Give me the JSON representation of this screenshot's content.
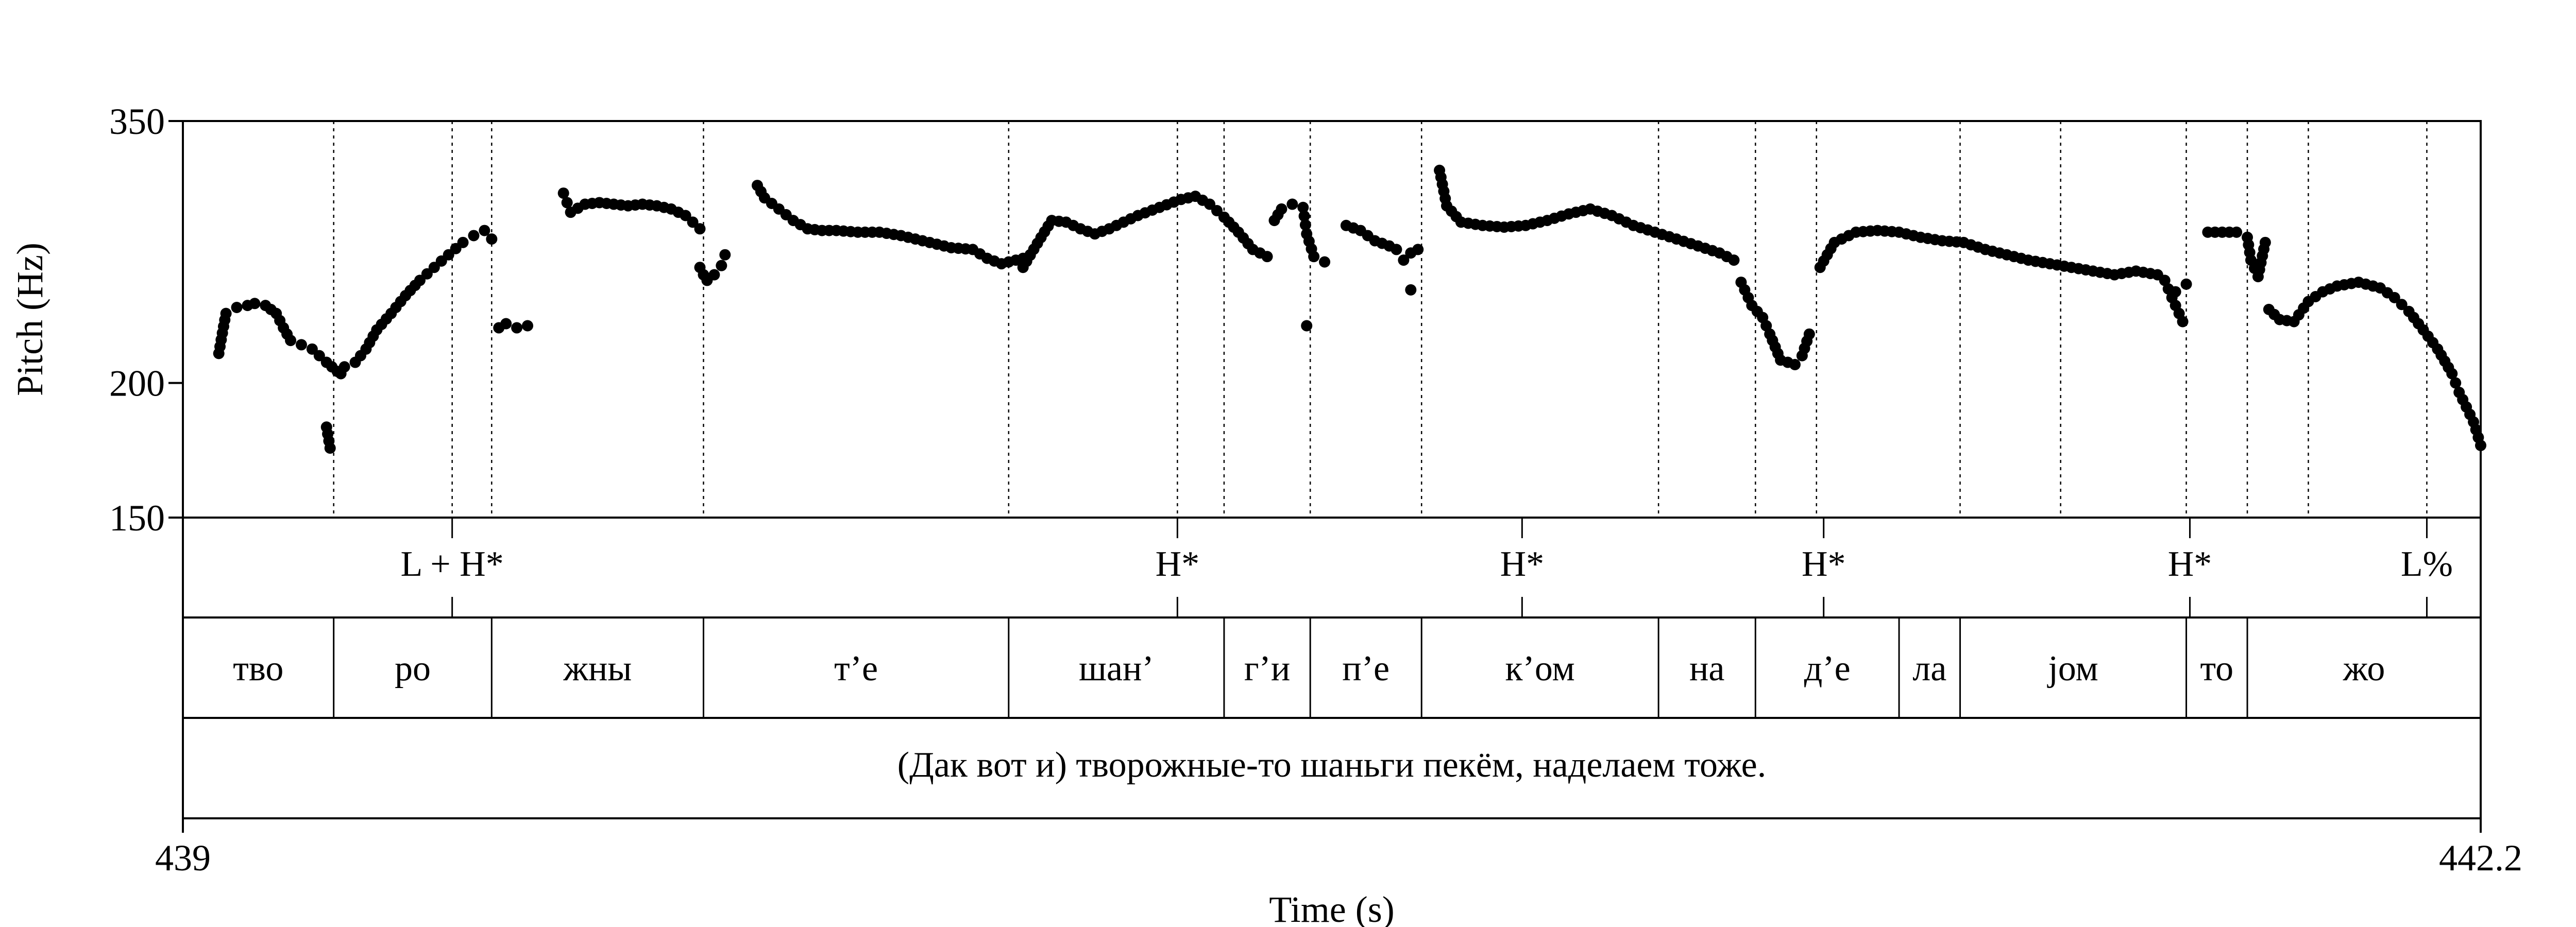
{
  "chart_data": {
    "type": "scatter",
    "title": "",
    "xlabel": "Time (s)",
    "ylabel": "Pitch (Hz)",
    "xlim": [
      439,
      442.2
    ],
    "ylim": [
      150,
      350
    ],
    "y_scale": "log",
    "x_ticks": [
      "439",
      "442.2"
    ],
    "y_ticks": [
      {
        "value": 150,
        "label": "150"
      },
      {
        "value": 200,
        "label": "200"
      },
      {
        "value": 350,
        "label": "350"
      }
    ],
    "grid": false,
    "boundaries": [
      439.21,
      439.375,
      439.43,
      439.725,
      440.15,
      440.385,
      440.45,
      440.57,
      440.725,
      441.055,
      441.19,
      441.275,
      441.475,
      441.615,
      441.79,
      441.875,
      441.96,
      442.125
    ],
    "tones": [
      {
        "time": 439.375,
        "label": "L + H*"
      },
      {
        "time": 440.385,
        "label": "H*"
      },
      {
        "time": 440.865,
        "label": "H*"
      },
      {
        "time": 441.285,
        "label": "H*"
      },
      {
        "time": 441.795,
        "label": "H*"
      },
      {
        "time": 442.125,
        "label": "L%"
      }
    ],
    "syllables": [
      {
        "start": 439.0,
        "end": 439.21,
        "label": "тво"
      },
      {
        "start": 439.21,
        "end": 439.43,
        "label": "ро"
      },
      {
        "start": 439.43,
        "end": 439.725,
        "label": "жны"
      },
      {
        "start": 439.725,
        "end": 440.15,
        "label": "т’е"
      },
      {
        "start": 440.15,
        "end": 440.45,
        "label": "шан’"
      },
      {
        "start": 440.45,
        "end": 440.57,
        "label": "г’и"
      },
      {
        "start": 440.57,
        "end": 440.725,
        "label": "п’е"
      },
      {
        "start": 440.725,
        "end": 441.055,
        "label": "к’ом"
      },
      {
        "start": 441.055,
        "end": 441.19,
        "label": "на"
      },
      {
        "start": 441.19,
        "end": 441.39,
        "label": "д’е"
      },
      {
        "start": 441.39,
        "end": 441.475,
        "label": "ла"
      },
      {
        "start": 441.475,
        "end": 441.79,
        "label": "jом"
      },
      {
        "start": 441.79,
        "end": 441.875,
        "label": "то"
      },
      {
        "start": 441.875,
        "end": 442.2,
        "label": "жо"
      }
    ],
    "sentence": "(Дак вот и) творожные-то шаньги пекём, наделаем тоже.",
    "series": [
      {
        "name": "pitch",
        "segments": [
          [
            [
              439.05,
              213
            ],
            [
              439.06,
              232
            ],
            [
              439.075,
              235
            ],
            [
              439.09,
              236
            ],
            [
              439.1,
              237
            ],
            [
              439.115,
              236
            ],
            [
              439.13,
              232
            ],
            [
              439.14,
              225
            ],
            [
              439.15,
              219
            ],
            [
              439.165,
              217
            ],
            [
              439.18,
              215
            ],
            [
              439.19,
              212
            ],
            [
              439.2,
              209
            ],
            [
              439.215,
              205
            ],
            [
              439.22,
              204
            ]
          ],
          [
            [
              439.2,
              182
            ],
            [
              439.205,
              174
            ]
          ],
          [
            [
              439.225,
              207
            ],
            [
              439.24,
              209
            ],
            [
              439.255,
              215
            ],
            [
              439.27,
              224
            ],
            [
              439.29,
              232
            ],
            [
              439.31,
              241
            ],
            [
              439.33,
              249
            ],
            [
              439.35,
              256
            ],
            [
              439.37,
              263
            ],
            [
              439.39,
              270
            ],
            [
              439.405,
              274
            ],
            [
              439.42,
              277
            ],
            [
              439.43,
              272
            ]
          ],
          [
            [
              439.44,
              225
            ],
            [
              439.45,
              227
            ],
            [
              439.465,
              225
            ],
            [
              439.48,
              226
            ]
          ],
          [
            [
              439.53,
              300
            ],
            [
              439.535,
              294
            ],
            [
              439.54,
              288
            ],
            [
              439.56,
              293
            ],
            [
              439.58,
              294
            ],
            [
              439.6,
              293
            ],
            [
              439.62,
              292
            ],
            [
              439.64,
              293
            ],
            [
              439.66,
              292
            ],
            [
              439.68,
              290
            ],
            [
              439.7,
              286
            ],
            [
              439.71,
              282
            ],
            [
              439.72,
              278
            ]
          ],
          [
            [
              439.72,
              256
            ],
            [
              439.725,
              252
            ],
            [
              439.73,
              249
            ],
            [
              439.74,
              252
            ],
            [
              439.75,
              257
            ],
            [
              439.755,
              263
            ]
          ],
          [
            [
              439.8,
              305
            ],
            [
              439.81,
              297
            ],
            [
              439.83,
              290
            ],
            [
              439.85,
              283
            ],
            [
              439.87,
              278
            ],
            [
              439.89,
              277
            ],
            [
              439.91,
              277
            ],
            [
              439.94,
              276
            ],
            [
              439.97,
              276
            ],
            [
              440.0,
              274
            ],
            [
              440.04,
              270
            ],
            [
              440.07,
              267
            ],
            [
              440.1,
              266
            ],
            [
              440.12,
              261
            ],
            [
              440.14,
              258
            ],
            [
              440.15,
              259
            ],
            [
              440.17,
              261
            ],
            [
              440.18,
              263
            ]
          ],
          [
            [
              440.17,
              256
            ],
            [
              440.21,
              283
            ],
            [
              440.23,
              282
            ],
            [
              440.25,
              278
            ],
            [
              440.27,
              275
            ],
            [
              440.29,
              278
            ],
            [
              440.31,
              282
            ],
            [
              440.33,
              286
            ],
            [
              440.36,
              291
            ],
            [
              440.39,
              296
            ],
            [
              440.41,
              298
            ],
            [
              440.43,
              293
            ],
            [
              440.45,
              285
            ],
            [
              440.47,
              276
            ],
            [
              440.49,
              266
            ],
            [
              440.51,
              262
            ]
          ],
          [
            [
              440.52,
              283
            ],
            [
              440.53,
              290
            ],
            [
              440.545,
              293
            ],
            [
              440.56,
              291
            ],
            [
              440.565,
              275
            ],
            [
              440.575,
              262
            ],
            [
              440.59,
              259
            ]
          ],
          [
            [
              440.565,
              226
            ]
          ],
          [
            [
              440.62,
              280
            ],
            [
              440.64,
              277
            ],
            [
              440.66,
              271
            ],
            [
              440.68,
              268
            ],
            [
              440.69,
              266
            ],
            [
              440.7,
              260
            ],
            [
              440.71,
              264
            ],
            [
              440.72,
              266
            ]
          ],
          [
            [
              440.71,
              244
            ]
          ],
          [
            [
              440.75,
              315
            ],
            [
              440.76,
              292
            ],
            [
              440.78,
              282
            ],
            [
              440.81,
              280
            ],
            [
              440.84,
              279
            ],
            [
              440.87,
              280
            ],
            [
              440.9,
              283
            ],
            [
              440.93,
              287
            ],
            [
              440.96,
              290
            ],
            [
              440.99,
              286
            ],
            [
              441.02,
              280
            ],
            [
              441.05,
              276
            ],
            [
              441.08,
              272
            ],
            [
              441.11,
              268
            ],
            [
              441.14,
              264
            ],
            [
              441.16,
              260
            ]
          ],
          [
            [
              441.17,
              248
            ],
            [
              441.185,
              236
            ],
            [
              441.2,
              230
            ],
            [
              441.21,
              222
            ],
            [
              441.225,
              210
            ],
            [
              441.245,
              208
            ],
            [
              441.255,
              212
            ],
            [
              441.265,
              222
            ]
          ],
          [
            [
              441.28,
              256
            ],
            [
              441.3,
              270
            ],
            [
              441.33,
              276
            ],
            [
              441.36,
              277
            ],
            [
              441.39,
              276
            ],
            [
              441.42,
              273
            ],
            [
              441.45,
              271
            ],
            [
              441.48,
              270
            ],
            [
              441.51,
              266
            ],
            [
              441.54,
              263
            ],
            [
              441.57,
              260
            ],
            [
              441.6,
              258
            ],
            [
              441.63,
              256
            ],
            [
              441.66,
              254
            ],
            [
              441.69,
              252
            ],
            [
              441.72,
              254
            ],
            [
              441.75,
              252
            ],
            [
              441.76,
              249
            ],
            [
              441.77,
              240
            ],
            [
              441.785,
              228
            ]
          ],
          [
            [
              441.775,
              243
            ],
            [
              441.79,
              247
            ]
          ],
          [
            [
              441.82,
              276
            ],
            [
              441.84,
              276
            ],
            [
              441.86,
              276
            ],
            [
              441.875,
              273
            ],
            [
              441.88,
              260
            ],
            [
              441.89,
              251
            ],
            [
              441.9,
              270
            ]
          ],
          [
            [
              441.905,
              234
            ],
            [
              441.92,
              229
            ],
            [
              441.94,
              228
            ],
            [
              441.96,
              238
            ],
            [
              441.98,
              243
            ],
            [
              442.0,
              246
            ],
            [
              442.03,
              248
            ],
            [
              442.06,
              245
            ],
            [
              442.08,
              240
            ],
            [
              442.1,
              233
            ],
            [
              442.12,
              224
            ],
            [
              442.14,
              215
            ],
            [
              442.16,
              204
            ],
            [
              442.17,
              196
            ],
            [
              442.18,
              190
            ],
            [
              442.19,
              184
            ],
            [
              442.2,
              175
            ]
          ]
        ]
      }
    ]
  }
}
